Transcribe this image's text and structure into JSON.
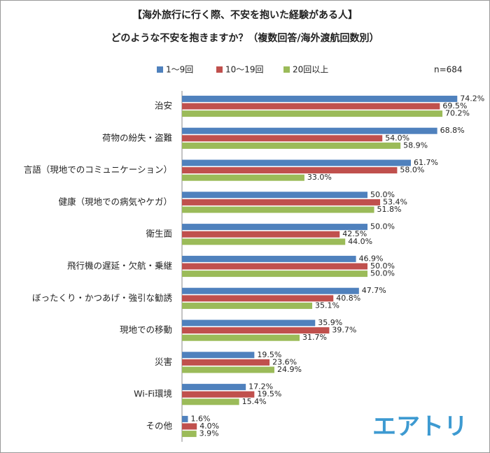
{
  "chart_data": {
    "type": "hbar",
    "title": "【海外旅行に行く際、不安を抱いた経験がある人】",
    "subtitle": "どのような不安を抱きますか？（複数回答/海外渡航回数別）",
    "annotation": "n=684",
    "logo": "エアトリ",
    "categories": [
      "治安",
      "荷物の紛失・盗難",
      "言語（現地でのコミュニケーション）",
      "健康（現地での病気やケガ）",
      "衛生面",
      "飛行機の遅延・欠航・乗継",
      "ぼったくり・かつあげ・強引な勧誘",
      "現地での移動",
      "災害",
      "Wi-Fi環境",
      "その他"
    ],
    "series": [
      {
        "name": "1～9回",
        "color": "#4f81bd",
        "values": [
          74.2,
          68.8,
          61.7,
          50.0,
          50.0,
          46.9,
          47.7,
          35.9,
          19.5,
          17.2,
          1.6
        ],
        "value_labels": [
          "74.2%",
          "68.8%",
          "61.7%",
          "50.0%",
          "50.0%",
          "46.9%",
          "47.7%",
          "35.9%",
          "19.5%",
          "17.2%",
          "1.6%"
        ]
      },
      {
        "name": "10～19回",
        "color": "#c0504d",
        "values": [
          69.5,
          54.0,
          58.0,
          53.4,
          42.5,
          50.0,
          40.8,
          39.7,
          23.6,
          19.5,
          4.0
        ],
        "value_labels": [
          "69.5%",
          "54.0%",
          "58.0%",
          "53.4%",
          "42.5%",
          "50.0%",
          "40.8%",
          "39.7%",
          "23.6%",
          "19.5%",
          "4.0%"
        ]
      },
      {
        "name": "20回以上",
        "color": "#9bbb59",
        "values": [
          70.2,
          58.9,
          33.0,
          51.8,
          44.0,
          50.0,
          35.1,
          31.7,
          24.9,
          15.4,
          3.9
        ],
        "value_labels": [
          "70.2%",
          "58.9%",
          "33.0%",
          "51.8%",
          "44.0%",
          "50.0%",
          "35.1%",
          "31.7%",
          "24.9%",
          "15.4%",
          "3.9%"
        ]
      }
    ],
    "xlim": [
      0,
      80
    ]
  }
}
